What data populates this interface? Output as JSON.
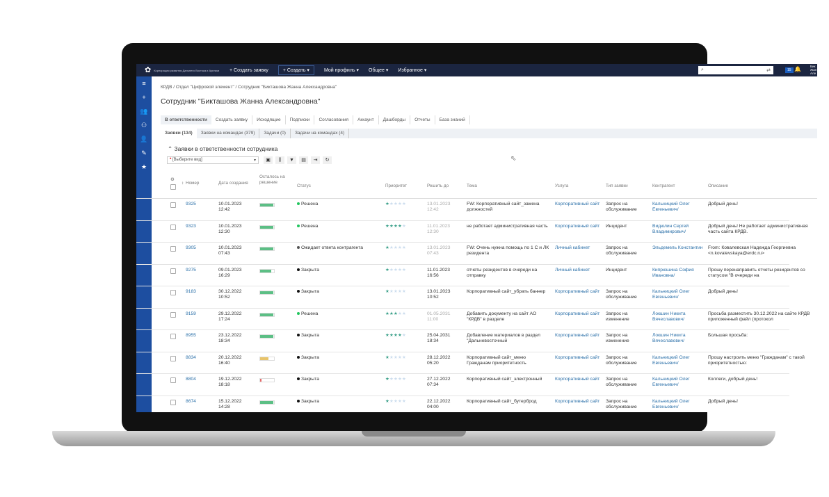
{
  "topbar": {
    "logo_text": "Корпорация развития Дальнего Востока и Арктики",
    "create_request": "+ Создать заявку",
    "create": "+ Создать ▾",
    "profile": "Мой профиль ▾",
    "general": "Общее ▾",
    "favorites": "Избранное ▾",
    "notif_count": "15",
    "user": "Бик Жан Але"
  },
  "breadcrumb": "КРДВ / Отдел \"Цифровой элемент\" / Сотрудник \"Бикташова Жанна Александровна\"",
  "page_title": "Сотрудник \"Бикташова Жанна Александровна\"",
  "tabs": [
    "В ответственности",
    "Создать заявку",
    "Исходящие",
    "Подписки",
    "Согласования",
    "Аккаунт",
    "Дашборды",
    "Отчеты",
    "База знаний"
  ],
  "subtabs": [
    "Заявки (134)",
    "Заявки на командах (379)",
    "Задачи (0)",
    "Задачи на командах (4)"
  ],
  "section_title": "Заявки в ответственности сотрудника",
  "view_select": {
    "required": "*",
    "value": "[Выберите вид]"
  },
  "columns": [
    "Номер",
    "Дата создания",
    "Осталось на решение",
    "Статус",
    "Приоритет",
    "Решить до",
    "Тема",
    "Услуга",
    "Тип заявки",
    "Контрагент",
    "Описание"
  ],
  "status_colors": {
    "Решена": "#22c55e",
    "Ожидает ответа контрагента": "#555555",
    "Закрыта": "#111111"
  },
  "rows": [
    {
      "num": "9325",
      "created": "10.01.2023 12:42",
      "remaining": 0.95,
      "bar_color": "#5cbf85",
      "status": "Решена",
      "priority": 1,
      "due": "13.01.2023 12:42",
      "due_grey": true,
      "topic": "FW: Корпоративный сайт_замена должностей",
      "service": "Корпоративный сайт",
      "type": "Запрос на обслуживание",
      "contractor": "Кальницкий Олег Евгеньевич/",
      "desc": "Добрый день!"
    },
    {
      "num": "9323",
      "created": "10.01.2023 12:30",
      "remaining": 0.95,
      "bar_color": "#5cbf85",
      "status": "Решена",
      "priority": 4,
      "due": "11.01.2023 12:30",
      "due_grey": true,
      "topic": "не работает административная часть",
      "service": "Корпоративный сайт",
      "type": "Инцидент",
      "contractor": "Видюлин Сергей Владимирович/",
      "desc": "Добрый день! Не работает административная часть сайта КРДВ."
    },
    {
      "num": "9305",
      "created": "10.01.2023 07:43",
      "remaining": 0.95,
      "bar_color": "#5cbf85",
      "status": "Ожидает ответа контрагента",
      "priority": 1,
      "due": "13.01.2023 07:43",
      "due_grey": true,
      "topic": "FW: Очень нужна помощь по 1 С и ЛК резидента",
      "service": "Личный кабинет",
      "type": "Запрос на обслуживание",
      "contractor": "Эльдемель Константин",
      "desc": "From: Ковалевская Надежда Георгиевна <n.kovalevskaya@erdc.ru>"
    },
    {
      "num": "9275",
      "created": "09.01.2023 16:29",
      "remaining": 0.8,
      "bar_color": "#5cbf85",
      "status": "Закрыта",
      "priority": 1,
      "due": "11.01.2023 16:56",
      "due_grey": false,
      "topic": "отчеты резидентов в очереди на отправку",
      "service": "Личный кабинет",
      "type": "Инцидент",
      "contractor": "Кипрюшина София Ивановна/",
      "desc": "Прошу перенаправить отчеты резидентов со статусом \"В очереди на"
    },
    {
      "num": "9183",
      "created": "30.12.2022 10:52",
      "remaining": 0.95,
      "bar_color": "#5cbf85",
      "status": "Закрыта",
      "priority": 1,
      "due": "13.01.2023 10:52",
      "due_grey": false,
      "topic": "Корпоративный сайт_убрать баннер",
      "service": "Корпоративный сайт",
      "type": "Запрос на обслуживание",
      "contractor": "Кальницкий Олег Евгеньевич/",
      "desc": "Добрый день!"
    },
    {
      "num": "9159",
      "created": "29.12.2022 17:24",
      "remaining": 0.95,
      "bar_color": "#5cbf85",
      "status": "Решена",
      "priority": 3,
      "due": "01.05.2031 11:00",
      "due_grey": true,
      "topic": "Добавить документу на сайт АО \"КРДВ\" в разделе",
      "service": "Корпоративный сайт",
      "type": "Запрос на изменение",
      "contractor": "Локшин Никита Вячеславович/",
      "desc": "Просьба разместить 30.12.2022 на сайте КРДВ приложенный файл (протокол"
    },
    {
      "num": "8955",
      "created": "23.12.2022 18:34",
      "remaining": 0.95,
      "bar_color": "#5cbf85",
      "status": "Закрыта",
      "priority": 4,
      "due": "25.04.2031 18:34",
      "due_grey": false,
      "topic": "Добавление материалов в раздел \"Дальневосточный",
      "service": "Корпоративный сайт",
      "type": "Запрос на изменение",
      "contractor": "Локшин Никита Вячеславович/",
      "desc": "Большая просьба:"
    },
    {
      "num": "8834",
      "created": "20.12.2022 16:40",
      "remaining": 0.6,
      "bar_color": "#e8c46a",
      "status": "Закрыта",
      "priority": 1,
      "due": "28.12.2022 05:20",
      "due_grey": false,
      "topic": "Корпоративный сайт_меню Гражданам приоритетность",
      "service": "Корпоративный сайт",
      "type": "Запрос на обслуживание",
      "contractor": "Кальницкий Олег Евгеньевич/",
      "desc": "Прошу настроить меню \"Гражданам\" с такой приоритетностью:"
    },
    {
      "num": "8804",
      "created": "19.12.2022 18:18",
      "remaining": 0.1,
      "bar_color": "#e46a6a",
      "status": "Закрыта",
      "priority": 1,
      "due": "27.12.2022 07:34",
      "due_grey": false,
      "topic": "Корпоративный сайт_электронный",
      "service": "Корпоративный сайт",
      "type": "Запрос на обслуживание",
      "contractor": "Кальницкий Олег Евгеньевич/",
      "desc": "Коллеги, добрый день!"
    },
    {
      "num": "8674",
      "created": "15.12.2022 14:28",
      "remaining": 0.95,
      "bar_color": "#5cbf85",
      "status": "Закрыта",
      "priority": 1,
      "due": "22.12.2022 04:00",
      "due_grey": false,
      "topic": "Корпоративный сайт_бутерброд",
      "service": "Корпоративный сайт",
      "type": "Запрос на обслуживание",
      "contractor": "Кальницкий Олег Евгеньевич/",
      "desc": "Добрый день!"
    }
  ]
}
